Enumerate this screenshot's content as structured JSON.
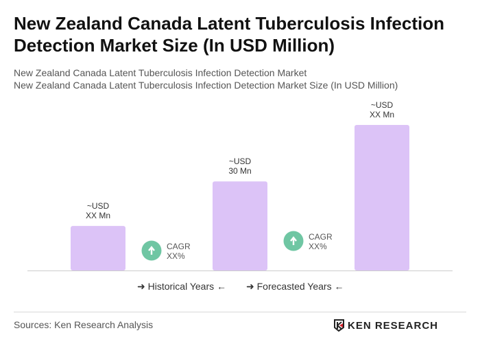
{
  "header": {
    "title": "New Zealand Canada Latent Tuberculosis Infection Detection Market Size (In USD Million)",
    "subtitle1": "New Zealand Canada Latent Tuberculosis Infection Detection Market",
    "subtitle2": "New Zealand Canada Latent Tuberculosis Infection Detection Market Size (In USD Million)"
  },
  "chart_data": {
    "type": "bar",
    "categories": [
      "",
      "",
      ""
    ],
    "values": [
      15,
      30,
      49
    ],
    "data_labels": [
      [
        "~USD",
        "XX Mn"
      ],
      [
        "~USD",
        "30 Mn"
      ],
      [
        "~USD",
        "XX Mn"
      ]
    ],
    "bar_color": "#dcc3f7",
    "ylim": [
      0,
      50
    ],
    "grid": false,
    "annotations": [
      {
        "icon": "arrow-up-icon",
        "color": "#6fc6a3",
        "line1": "CAGR",
        "line2": "XX%"
      },
      {
        "icon": "arrow-up-icon",
        "color": "#6fc6a3",
        "line1": "CAGR",
        "line2": "XX%"
      }
    ]
  },
  "legend": {
    "historical": "Historical Years",
    "forecasted": "Forecasted Years"
  },
  "footer": {
    "source": "Sources: Ken Research Analysis",
    "logo": "KEN RESEARCH"
  }
}
